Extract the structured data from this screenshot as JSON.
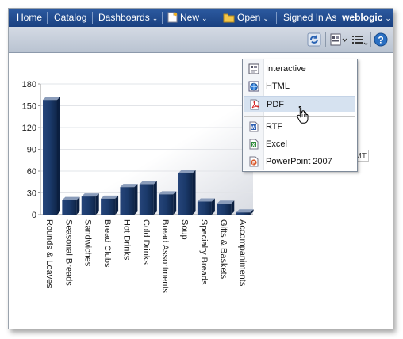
{
  "topnav": {
    "home": "Home",
    "catalog": "Catalog",
    "dashboards": "Dashboards",
    "new": "New",
    "open": "Open",
    "signed_in_as": "Signed In As",
    "user": "weblogic"
  },
  "toolbar": {
    "icons": [
      "refresh-icon",
      "export-icon",
      "options-icon",
      "help-icon"
    ]
  },
  "background_input_fragment": "MT",
  "export_menu": {
    "items": [
      {
        "label": "Interactive",
        "icon": "interactive-icon"
      },
      {
        "label": "HTML",
        "icon": "html-icon"
      },
      {
        "label": "PDF",
        "icon": "pdf-icon",
        "highlighted": true
      },
      {
        "label": "RTF",
        "icon": "rtf-icon"
      },
      {
        "label": "Excel",
        "icon": "excel-icon"
      },
      {
        "label": "PowerPoint 2007",
        "icon": "powerpoint-icon"
      }
    ]
  },
  "chart_data": {
    "type": "bar",
    "categories": [
      "Rounds & Loaves",
      "Seasonal Breads",
      "Sandwiches",
      "Bread Clubs",
      "Hot Drinks",
      "Cold Drinks",
      "Bread Assortments",
      "Soup",
      "Specialty Breads",
      "Gifts & Baskets",
      "Accompaniments"
    ],
    "values": [
      158,
      20,
      25,
      22,
      38,
      42,
      28,
      57,
      18,
      15,
      3
    ],
    "ylim": [
      0,
      180
    ],
    "yticks": [
      0,
      30,
      60,
      90,
      120,
      150,
      180
    ],
    "bar_color": "#1b3a6b",
    "grid": true
  }
}
